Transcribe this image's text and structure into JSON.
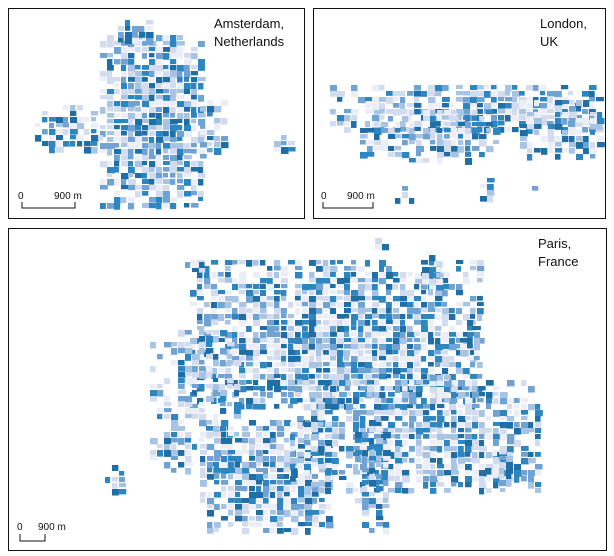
{
  "panels": [
    {
      "label": [
        "Amsterdam,",
        "Netherlands"
      ],
      "scale": {
        "start": "0",
        "end": "900 m"
      }
    },
    {
      "label": [
        "London,",
        "UK"
      ],
      "scale": {
        "start": "0",
        "end": "900 m"
      }
    },
    {
      "label": [
        "Paris,",
        "France"
      ],
      "scale": {
        "start": "0",
        "end": "900 m"
      }
    }
  ]
}
